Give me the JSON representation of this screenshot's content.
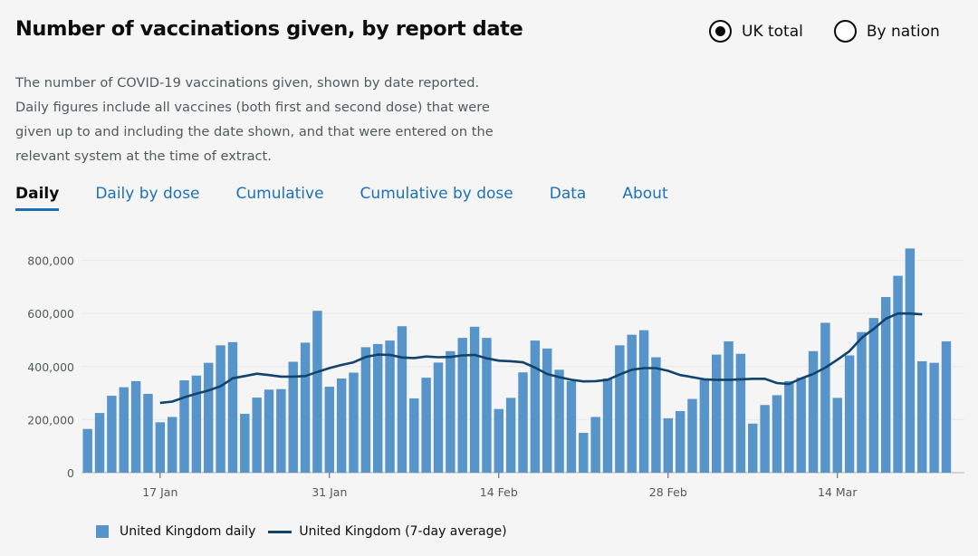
{
  "header": {
    "title": "Number of vaccinations given, by report date"
  },
  "options": {
    "uk_total": "UK total",
    "by_nation": "By nation",
    "selected": "uk_total"
  },
  "description": "The number of COVID-19 vaccinations given, shown by date reported. Daily figures include all vaccines (both first and second dose) that were given up to and including the date shown, and that were entered on the relevant system at the time of extract.",
  "tabs": [
    {
      "label": "Daily",
      "active": true
    },
    {
      "label": "Daily by dose",
      "active": false
    },
    {
      "label": "Cumulative",
      "active": false
    },
    {
      "label": "Cumulative by dose",
      "active": false
    },
    {
      "label": "Data",
      "active": false
    },
    {
      "label": "About",
      "active": false
    }
  ],
  "colors": {
    "bar": "#5694ca",
    "line": "#12436d",
    "accent": "#1d70b8"
  },
  "chart_data": {
    "type": "bar",
    "x": [
      "2021-01-11",
      "2021-01-12",
      "2021-01-13",
      "2021-01-14",
      "2021-01-15",
      "2021-01-16",
      "2021-01-17",
      "2021-01-18",
      "2021-01-19",
      "2021-01-20",
      "2021-01-21",
      "2021-01-22",
      "2021-01-23",
      "2021-01-24",
      "2021-01-25",
      "2021-01-26",
      "2021-01-27",
      "2021-01-28",
      "2021-01-29",
      "2021-01-30",
      "2021-01-31",
      "2021-02-01",
      "2021-02-02",
      "2021-02-03",
      "2021-02-04",
      "2021-02-05",
      "2021-02-06",
      "2021-02-07",
      "2021-02-08",
      "2021-02-09",
      "2021-02-10",
      "2021-02-11",
      "2021-02-12",
      "2021-02-13",
      "2021-02-14",
      "2021-02-15",
      "2021-02-16",
      "2021-02-17",
      "2021-02-18",
      "2021-02-19",
      "2021-02-20",
      "2021-02-21",
      "2021-02-22",
      "2021-02-23",
      "2021-02-24",
      "2021-02-25",
      "2021-02-26",
      "2021-02-27",
      "2021-02-28",
      "2021-03-01",
      "2021-03-02",
      "2021-03-03",
      "2021-03-04",
      "2021-03-05",
      "2021-03-06",
      "2021-03-07",
      "2021-03-08",
      "2021-03-09",
      "2021-03-10",
      "2021-03-11",
      "2021-03-12",
      "2021-03-13",
      "2021-03-14",
      "2021-03-15",
      "2021-03-16",
      "2021-03-17",
      "2021-03-18",
      "2021-03-19",
      "2021-03-20",
      "2021-03-21",
      "2021-03-22",
      "2021-03-23",
      "2021-03-24"
    ],
    "series": [
      {
        "name": "United Kingdom daily",
        "type": "bar",
        "values": [
          165000,
          225000,
          290000,
          322000,
          345000,
          297000,
          190000,
          210000,
          348000,
          366000,
          414000,
          480000,
          492000,
          222000,
          283000,
          313000,
          315000,
          418000,
          490000,
          610000,
          324000,
          355000,
          377000,
          473000,
          485000,
          498000,
          552000,
          280000,
          358000,
          415000,
          458000,
          508000,
          550000,
          508000,
          240000,
          282000,
          378000,
          498000,
          468000,
          388000,
          345000,
          150000,
          210000,
          355000,
          480000,
          520000,
          537000,
          435000,
          205000,
          232000,
          278000,
          350000,
          445000,
          495000,
          448000,
          185000,
          255000,
          292000,
          345000,
          358000,
          458000,
          565000,
          282000,
          442000,
          530000,
          583000,
          662000,
          742000,
          845000,
          420000,
          414000,
          495000,
          null
        ]
      },
      {
        "name": "United Kingdom (7-day average)",
        "type": "line",
        "values": [
          null,
          null,
          null,
          null,
          null,
          null,
          263000,
          268000,
          284000,
          298000,
          310000,
          326000,
          356000,
          364000,
          373000,
          368000,
          362000,
          362000,
          364000,
          380000,
          394000,
          406000,
          416000,
          436000,
          445000,
          444000,
          434000,
          432000,
          438000,
          435000,
          436000,
          442000,
          444000,
          431000,
          422000,
          420000,
          416000,
          396000,
          372000,
          360000,
          350000,
          344000,
          345000,
          350000,
          370000,
          388000,
          394000,
          394000,
          384000,
          368000,
          360000,
          352000,
          350000,
          350000,
          352000,
          354000,
          354000,
          338000,
          334000,
          355000,
          372000,
          396000,
          426000,
          458000,
          508000,
          542000,
          580000,
          600000,
          600000,
          597000,
          null,
          null,
          null
        ]
      }
    ],
    "xticks": [
      {
        "date": "2021-01-17",
        "label": "17 Jan"
      },
      {
        "date": "2021-01-31",
        "label": "31 Jan"
      },
      {
        "date": "2021-02-14",
        "label": "14 Feb"
      },
      {
        "date": "2021-02-28",
        "label": "28 Feb"
      },
      {
        "date": "2021-03-14",
        "label": "14 Mar"
      }
    ],
    "yticks": [
      0,
      200000,
      400000,
      600000,
      800000
    ],
    "ytick_labels": [
      "0",
      "200,000",
      "400,000",
      "600,000",
      "800,000"
    ],
    "ylim": [
      0,
      860000
    ],
    "grid": true,
    "legend_position": "bottom-left"
  }
}
